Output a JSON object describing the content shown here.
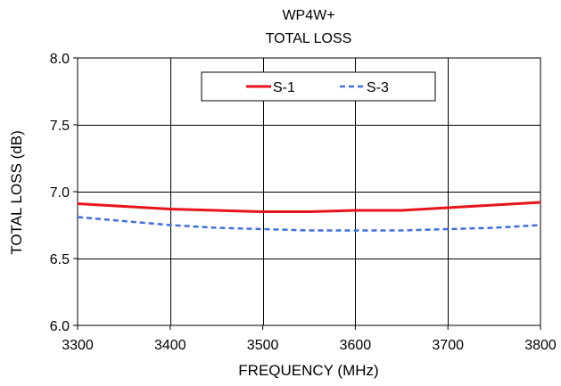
{
  "chart_data": {
    "type": "line",
    "title": [
      "WP4W+",
      "TOTAL  LOSS"
    ],
    "xlabel": "FREQUENCY (MHz)",
    "ylabel": "TOTAL  LOSS (dB)",
    "xlim": [
      3300,
      3800
    ],
    "ylim": [
      6.0,
      8.0
    ],
    "xticks": [
      3300,
      3400,
      3500,
      3600,
      3700,
      3800
    ],
    "yticks": [
      6.0,
      6.5,
      7.0,
      7.5,
      8.0
    ],
    "xtick_labels": [
      "3300",
      "3400",
      "3500",
      "3600",
      "3700",
      "3800"
    ],
    "ytick_labels": [
      "6.0",
      "6.5",
      "7.0",
      "7.5",
      "8.0"
    ],
    "grid": true,
    "legend_position": "top-center",
    "series": [
      {
        "name": "S-1",
        "color": "#e8141b",
        "style": "solid",
        "x": [
          3300,
          3350,
          3400,
          3450,
          3500,
          3550,
          3600,
          3650,
          3700,
          3750,
          3800
        ],
        "y": [
          6.91,
          6.89,
          6.87,
          6.86,
          6.85,
          6.85,
          6.86,
          6.86,
          6.88,
          6.9,
          6.92
        ]
      },
      {
        "name": "S-3",
        "color": "#3f6fe0",
        "style": "dashed",
        "x": [
          3300,
          3350,
          3400,
          3450,
          3500,
          3550,
          3600,
          3650,
          3700,
          3750,
          3800
        ],
        "y": [
          6.81,
          6.78,
          6.75,
          6.73,
          6.72,
          6.71,
          6.71,
          6.71,
          6.72,
          6.73,
          6.75
        ]
      }
    ]
  }
}
